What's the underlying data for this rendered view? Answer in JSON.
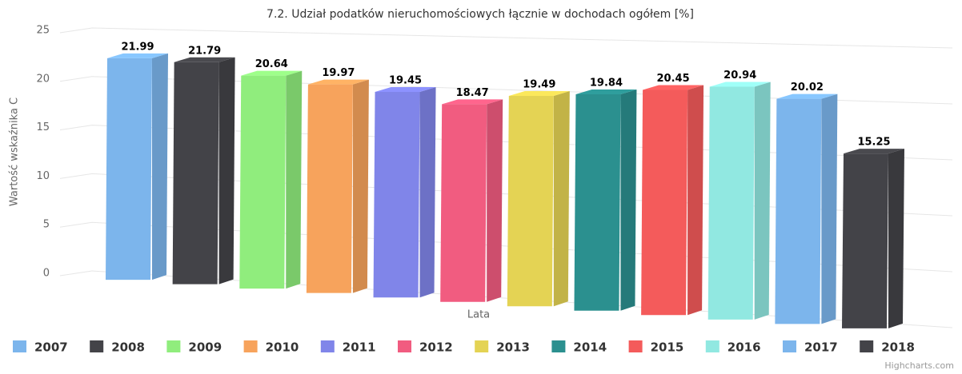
{
  "chart_data": {
    "type": "bar",
    "title": "7.2. Udział podatków nieruchomościowych łącznie w dochodach ogółem [%]",
    "x_label": "Lata",
    "y_label": "Wartość wskaźnika C",
    "ylim": [
      0,
      25
    ],
    "yticks": [
      0,
      5,
      10,
      15,
      20,
      25
    ],
    "grid": true,
    "legend": "bottom",
    "credits": "Highcharts.com",
    "series": [
      {
        "name": "2007",
        "color": "#7cb5ec",
        "values": [
          21.99
        ]
      },
      {
        "name": "2008",
        "color": "#434348",
        "values": [
          21.79
        ]
      },
      {
        "name": "2009",
        "color": "#90ed7d",
        "values": [
          20.64
        ]
      },
      {
        "name": "2010",
        "color": "#f7a35c",
        "values": [
          19.97
        ]
      },
      {
        "name": "2011",
        "color": "#8085e9",
        "values": [
          19.45
        ]
      },
      {
        "name": "2012",
        "color": "#f15c80",
        "values": [
          18.47
        ]
      },
      {
        "name": "2013",
        "color": "#e4d354",
        "values": [
          19.49
        ]
      },
      {
        "name": "2014",
        "color": "#2b908f",
        "values": [
          19.84
        ]
      },
      {
        "name": "2015",
        "color": "#f45b5b",
        "values": [
          20.45
        ]
      },
      {
        "name": "2016",
        "color": "#91e8e1",
        "values": [
          20.94
        ]
      },
      {
        "name": "2017",
        "color": "#7cb5ec",
        "values": [
          20.02
        ]
      },
      {
        "name": "2018",
        "color": "#434348",
        "values": [
          15.25
        ]
      }
    ]
  }
}
